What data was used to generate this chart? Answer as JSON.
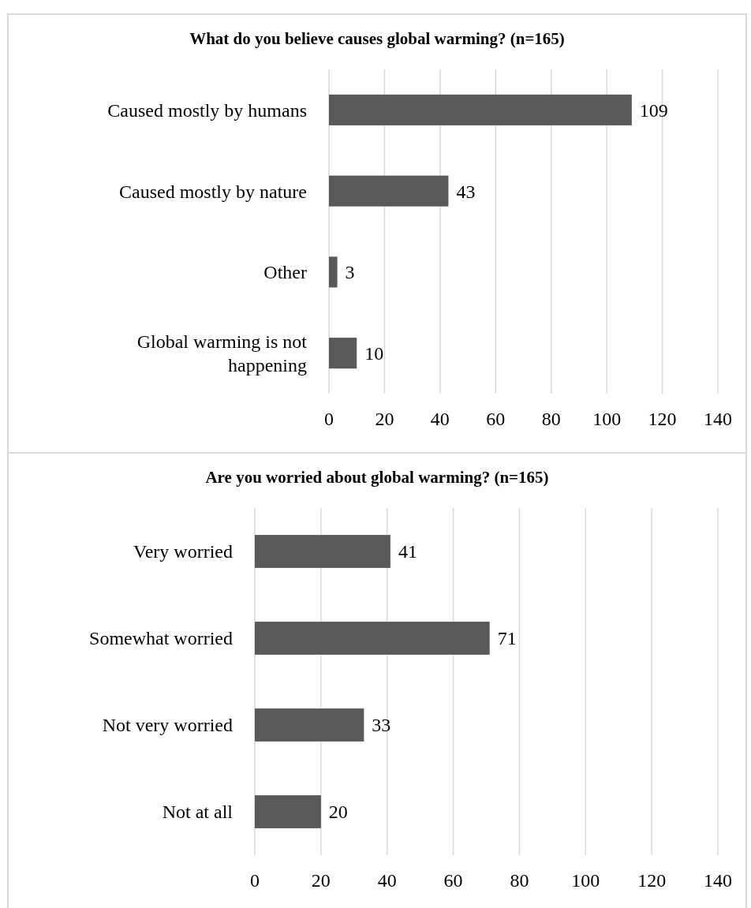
{
  "chart_data": [
    {
      "type": "bar",
      "orientation": "horizontal",
      "title": "What do you believe causes global warming? (n=165)",
      "categories": [
        "Caused mostly by humans",
        "Caused mostly by nature",
        "Other",
        "Global warming is not happening"
      ],
      "values": [
        109,
        43,
        3,
        10
      ],
      "color": "#595959",
      "xlim": [
        0,
        140
      ],
      "xticks": [
        0,
        20,
        40,
        60,
        80,
        100,
        120,
        140
      ],
      "grid": "x",
      "data_labels": true
    },
    {
      "type": "bar",
      "orientation": "horizontal",
      "title": "Are you worried about global warming? (n=165)",
      "categories": [
        "Very worried",
        "Somewhat worried",
        "Not very worried",
        "Not at all"
      ],
      "values": [
        41,
        71,
        33,
        20
      ],
      "color": "#595959",
      "xlim": [
        0,
        140
      ],
      "xticks": [
        0,
        20,
        40,
        60,
        80,
        100,
        120,
        140
      ],
      "grid": "x",
      "data_labels": true
    }
  ]
}
